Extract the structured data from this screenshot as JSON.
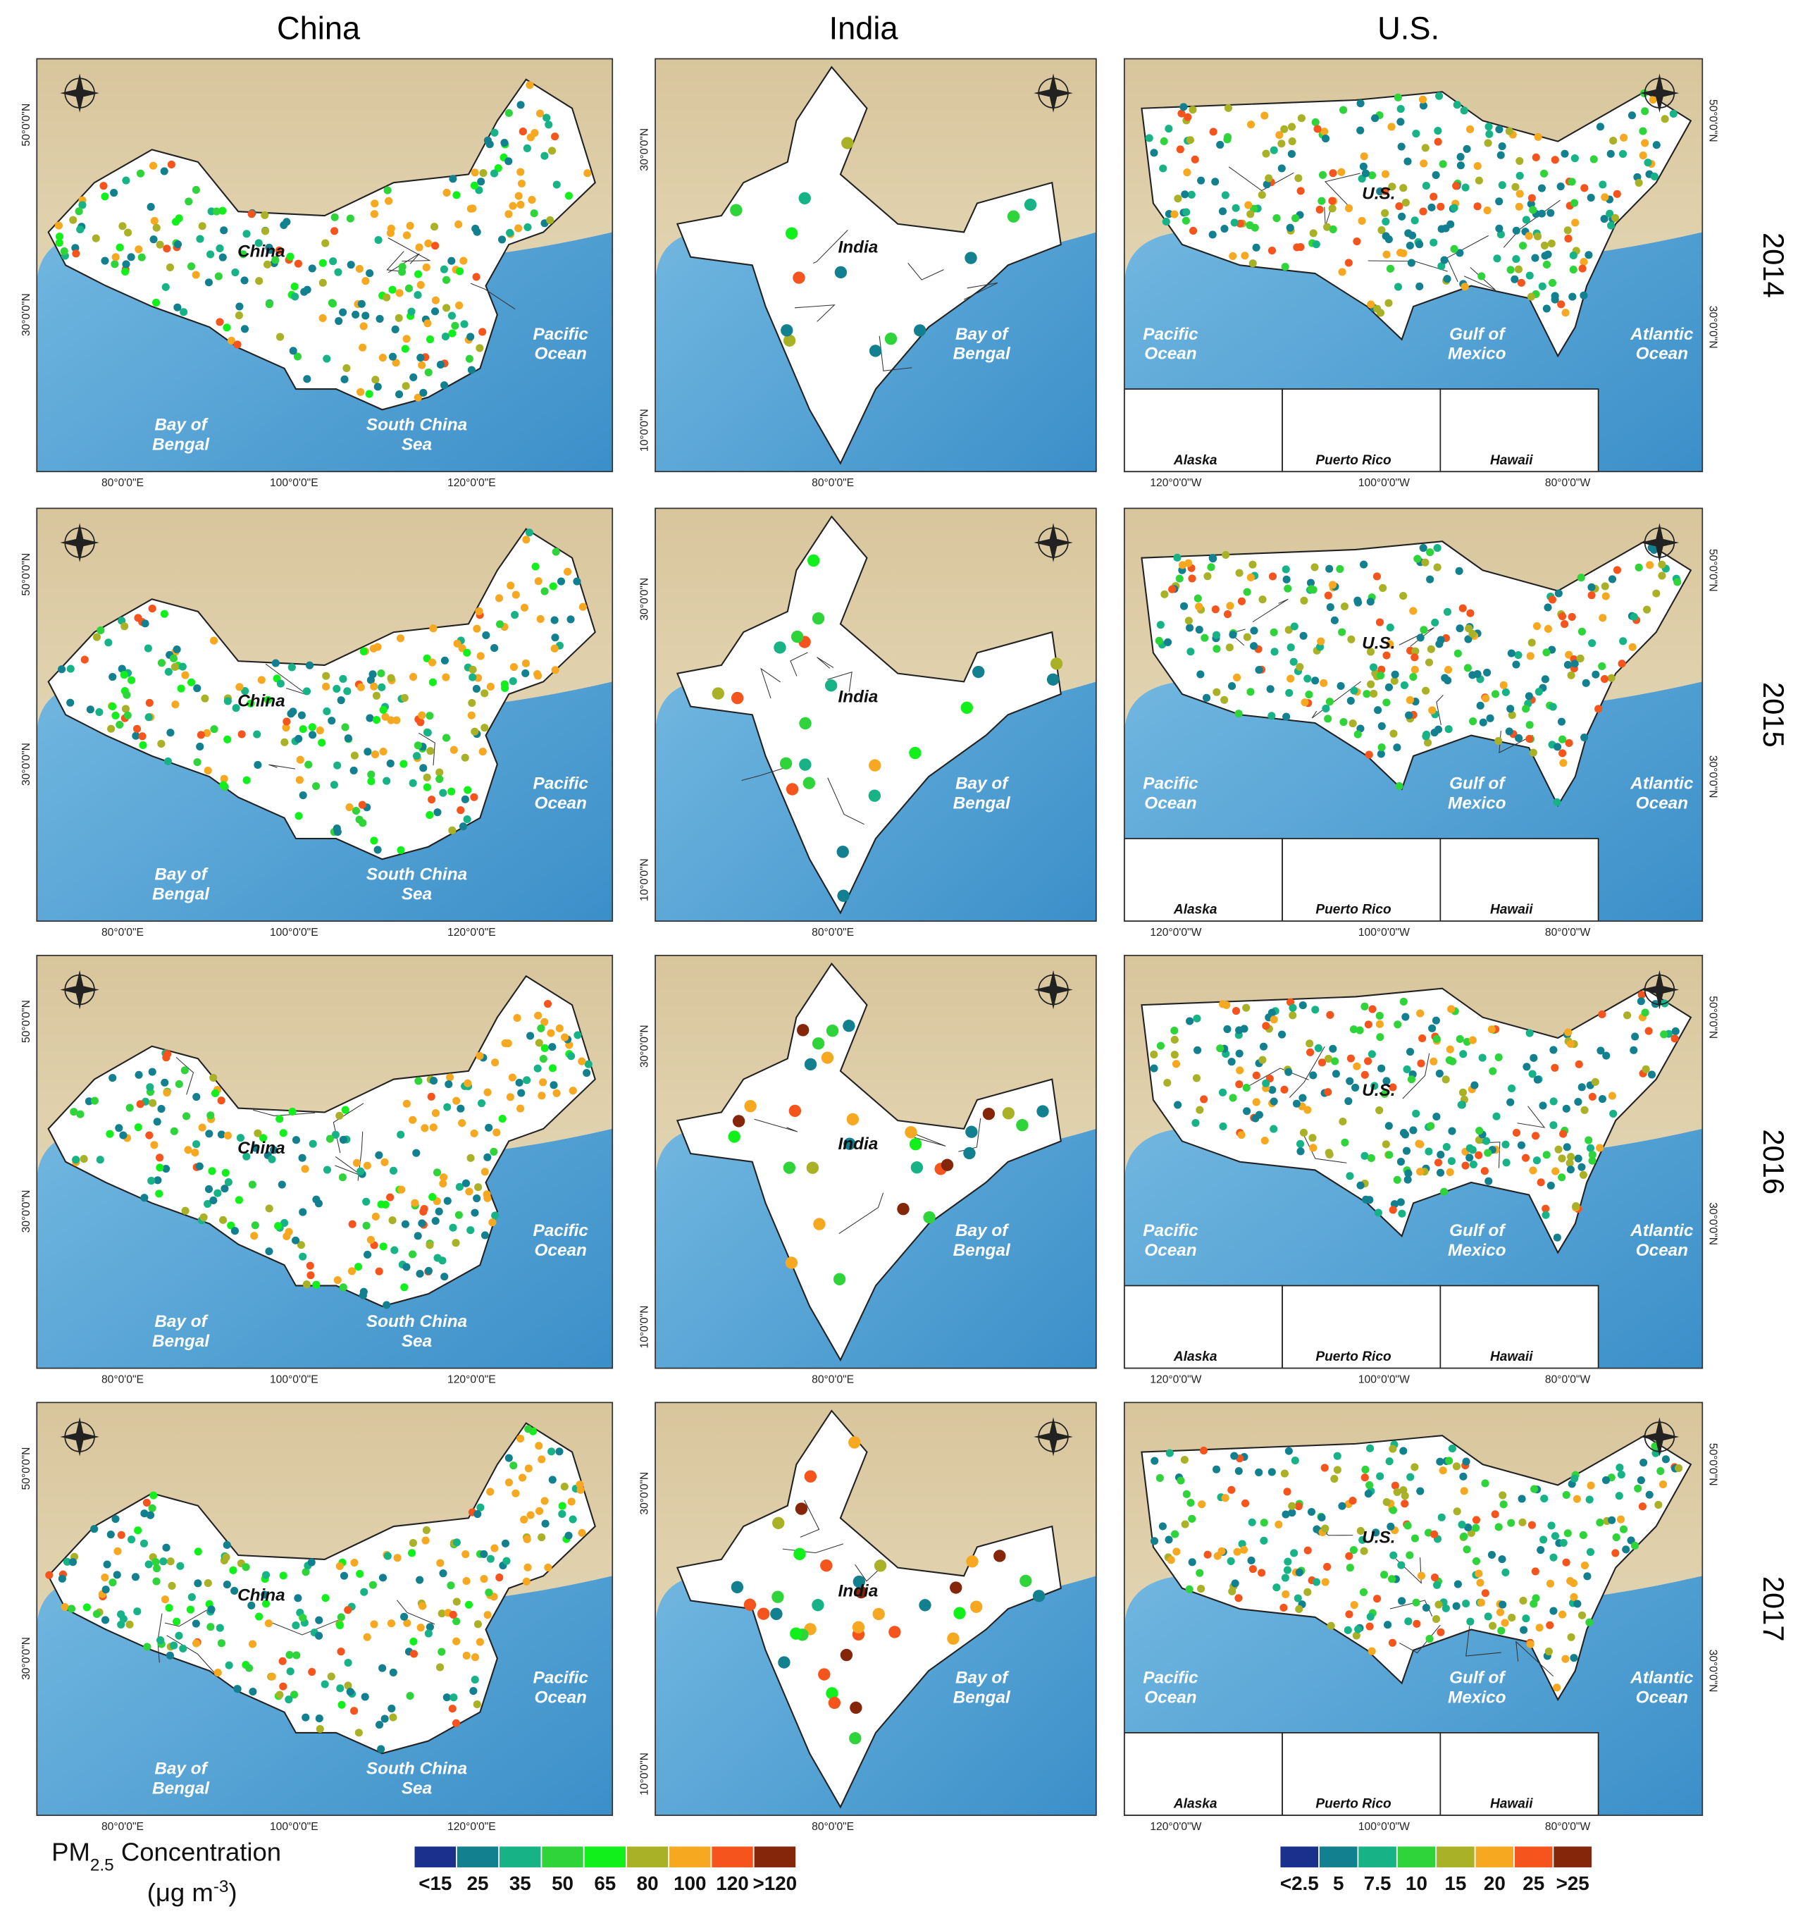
{
  "column_titles": [
    "China",
    "India",
    "U.S."
  ],
  "row_labels": [
    "2014",
    "2015",
    "2016",
    "2017"
  ],
  "maps": {
    "china": {
      "labels": [
        [
          "China"
        ],
        [
          "Bay of",
          "Bengal"
        ],
        [
          "South China",
          "Sea"
        ],
        [
          "Pacific",
          "Ocean"
        ]
      ],
      "x_ticks": [
        "80°0'0\"E",
        "100°0'0\"E",
        "120°0'0\"E"
      ],
      "y_ticks": [
        "50°0'0\"N",
        "30°0'0\"N"
      ]
    },
    "india": {
      "labels": [
        [
          "India"
        ],
        [
          "Bay of",
          "Bengal"
        ]
      ],
      "x_ticks": [
        "80°0'0\"E"
      ],
      "y_ticks": [
        "30°0'0\"N",
        "10°0'0\"N"
      ]
    },
    "us": {
      "labels": [
        [
          "U.S."
        ],
        [
          "Pacific",
          "Ocean"
        ],
        [
          "Gulf of",
          "Mexico"
        ],
        [
          "Atlantic",
          "Ocean"
        ]
      ],
      "insets": [
        "Alaska",
        "Puerto Rico",
        "Hawaii"
      ],
      "x_ticks": [
        "120°0'0\"W",
        "100°0'0\"W",
        "80°0'0\"W"
      ],
      "y_ticks": [
        "50°0'0\"N",
        "30°0'0\"N"
      ]
    }
  },
  "legend_title": {
    "main": "PM",
    "sub": "2.5",
    "rest": " Concentration",
    "unit": "(μg  m",
    "unit_sup": "-3",
    "unit_end": ")"
  },
  "legend_left": {
    "labels": [
      "<15",
      "25",
      "35",
      "50",
      "65",
      "80",
      "100",
      "120",
      ">120"
    ],
    "colors": [
      "#1b2f8c",
      "#13808f",
      "#17b387",
      "#2fd33a",
      "#12f01c",
      "#a9b126",
      "#f6a821",
      "#f5541c",
      "#85250a"
    ]
  },
  "legend_right": {
    "labels": [
      "<2.5",
      "5",
      "7.5",
      "10",
      "15",
      "20",
      "25",
      ">25"
    ],
    "colors": [
      "#1b2f8c",
      "#13808f",
      "#17b387",
      "#2fd33a",
      "#a9b126",
      "#f6a821",
      "#f5541c",
      "#85250a"
    ]
  }
}
